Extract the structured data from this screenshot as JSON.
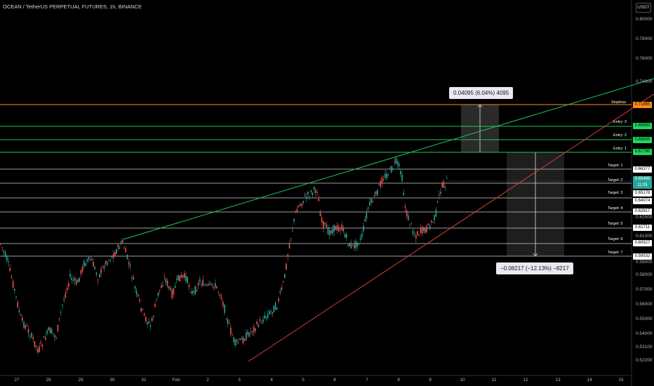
{
  "header": {
    "symbol": "OCEAN / TetherUS PERPETUAL FUTURES, 1h, BINANCE",
    "currency": "USDT"
  },
  "price_axis": {
    "ticks": [
      "0.80000",
      "0.78000",
      "0.76000",
      "0.74000",
      "0.62500",
      "0.61000",
      "0.59000",
      "0.58000",
      "0.57000",
      "0.56000",
      "0.55000",
      "0.54000",
      "0.53100",
      "0.52200"
    ]
  },
  "time_axis": {
    "labels": [
      "27",
      "28",
      "29",
      "30",
      "31",
      "Feb",
      "2",
      "3",
      "4",
      "5",
      "6",
      "7",
      "8",
      "9",
      "10",
      "11",
      "12",
      "13",
      "14",
      "15"
    ]
  },
  "levels": {
    "stoploss": {
      "label": "Stoploss",
      "value": "0.71865",
      "color": "#ff8c1a"
    },
    "entries": [
      {
        "label": "Entry: 3",
        "value": "0.69993"
      },
      {
        "label": "Entry: 2",
        "value": "0.68835"
      },
      {
        "label": "Entry: 1",
        "value": "0.67780"
      }
    ],
    "targets": [
      {
        "label": "Target: 1",
        "value": "0.66377"
      },
      {
        "label": "Target: 2",
        "value": "0.65488",
        "sub": "11:05"
      },
      {
        "label": "Target: 3",
        "value": "0.65178",
        "sub": "0.64074"
      },
      {
        "label": "Target: 4",
        "value": "0.62917"
      },
      {
        "label": "Target: 5",
        "value": "0.61711"
      },
      {
        "label": "Target: 6",
        "value": "0.60527"
      },
      {
        "label": "Target: 7",
        "value": "0.59532"
      }
    ],
    "current_price": "0.65488",
    "countdown": "11:05"
  },
  "measures": {
    "up": "0.04095 (6.04%) 4095",
    "down": "−0.08217 (−12.13%) −8217"
  },
  "colors": {
    "up_candle": "#26a69a",
    "down_candle": "#ef5350",
    "green_trend": "#22c55e",
    "red_trend": "#e53935"
  }
}
